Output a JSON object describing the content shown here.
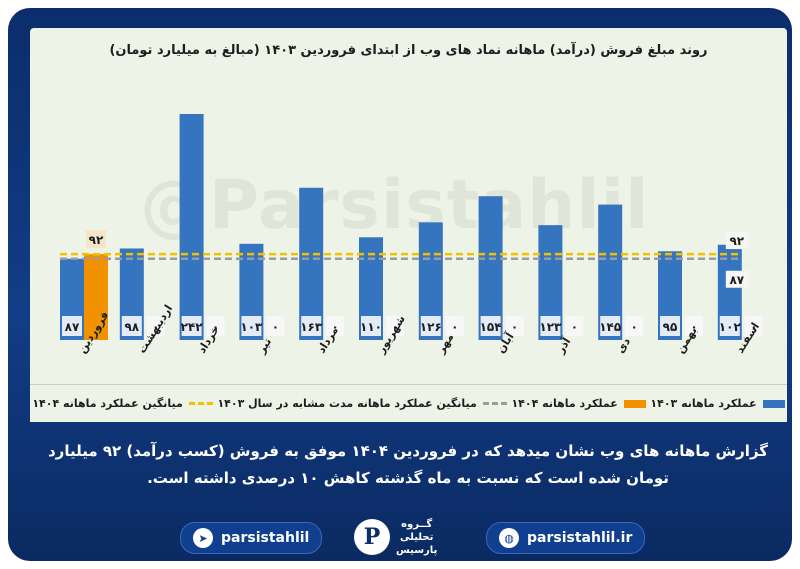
{
  "chart_data": {
    "type": "bar",
    "title": "روند مبلغ فروش (درآمد) ماهانه نماد های وب از ابتدای فروردین ۱۴۰۳ (مبالغ به میلیارد تومان)",
    "categories": [
      "فروردین",
      "اردیبهشت",
      "خرداد",
      "تیر",
      "مرداد",
      "شهریور",
      "مهر",
      "آبان",
      "آذر",
      "دی",
      "بهمن",
      "اسفند"
    ],
    "series": [
      {
        "name": "عملکرد ماهانه ۱۴۰۳",
        "color": "#3575c0",
        "values": [
          87,
          98,
          242,
          103,
          163,
          110,
          126,
          154,
          123,
          145,
          95,
          102
        ],
        "labels": [
          "۸۷",
          "۹۸",
          "۲۴۲",
          "۱۰۳",
          "۱۶۳",
          "۱۱۰",
          "۱۲۶",
          "۱۵۴",
          "۱۲۳",
          "۱۴۵",
          "۹۵",
          "۱۰۲"
        ]
      },
      {
        "name": "عملکرد ماهانه ۱۴۰۴",
        "color": "#f39200",
        "values": [
          92,
          0,
          0,
          0,
          0,
          0,
          0,
          0,
          0,
          0,
          0,
          0
        ],
        "labels": [
          "",
          "۰",
          "۰",
          "۰",
          "۰",
          "۰",
          "۰",
          "۰",
          "۰",
          "۰",
          "۰",
          "۰"
        ]
      }
    ],
    "reference_lines": [
      {
        "name": "میانگین عملکرد ماهانه ۱۴۰۴",
        "value": 92,
        "label": "۹۲",
        "color": "#f2c200"
      },
      {
        "name": "میانگین عملکرد ماهانه مدت مشابه در سال ۱۴۰۳",
        "value": 87,
        "label": "۸۷",
        "color": "#9b9b9b"
      }
    ],
    "top_label_1404": "۹۲",
    "ylim": [
      0,
      260
    ],
    "grid": false,
    "legend_position": "bottom"
  },
  "legend": {
    "item1": "عملکرد ماهانه ۱۴۰۳",
    "item2": "عملکرد ماهانه ۱۴۰۴",
    "item3": "میانگین عملکرد ماهانه مدت مشابه در سال ۱۴۰۳",
    "item4": "میانگین عملکرد ماهانه ۱۴۰۴"
  },
  "watermark": "@Parsistahlil",
  "caption": "گزارش ماهانه های وب نشان میدهد که در فروردین ۱۴۰۴ موفق به فروش (کسب درآمد) ۹۲ میلیارد تومان شده است که نسبت به ماه گذشته کاهش ۱۰ درصدی داشته است.",
  "footer": {
    "telegram": "parsistahlil",
    "website": "parsistahlil.ir",
    "logo_mark": "P",
    "logo_line1": "گــروه",
    "logo_line2": "تحلیلی",
    "logo_line3": "پارسیس"
  }
}
